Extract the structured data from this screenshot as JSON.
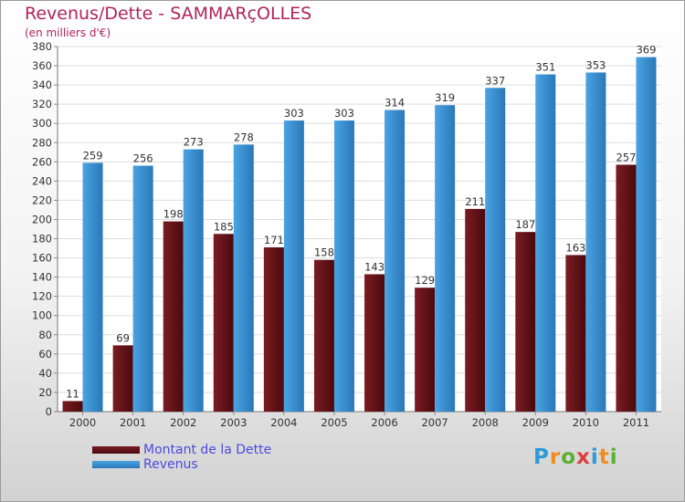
{
  "header": {
    "title": "Revenus/Dette - SAMMARçOLLES",
    "subtitle": "(en milliers d'€)"
  },
  "logo": {
    "text": "Proxiti",
    "colors": [
      "#2d9bd6",
      "#f08c1e",
      "#5ab031",
      "#e03c3c",
      "#2d9bd6",
      "#f08c1e",
      "#5ab031"
    ]
  },
  "colors": {
    "debt": "#7a1c22",
    "debt_dark": "#4a0a0e",
    "revenue": "#4aa3e2",
    "revenue_dark": "#2a78b8",
    "title": "#b0245a",
    "legend_text": "#4a4ae0"
  },
  "chart_data": {
    "type": "bar",
    "categories": [
      "2000",
      "2001",
      "2002",
      "2003",
      "2004",
      "2005",
      "2006",
      "2007",
      "2008",
      "2009",
      "2010",
      "2011"
    ],
    "series": [
      {
        "name": "Montant de la Dette",
        "values": [
          11,
          69,
          198,
          185,
          171,
          158,
          143,
          129,
          211,
          187,
          163,
          257
        ]
      },
      {
        "name": "Revenus",
        "values": [
          259,
          256,
          273,
          278,
          303,
          303,
          314,
          319,
          337,
          351,
          353,
          369
        ]
      }
    ],
    "ylim": [
      0,
      380
    ],
    "ytick_step": 20,
    "grid": true,
    "legend_position": "bottom-left"
  }
}
